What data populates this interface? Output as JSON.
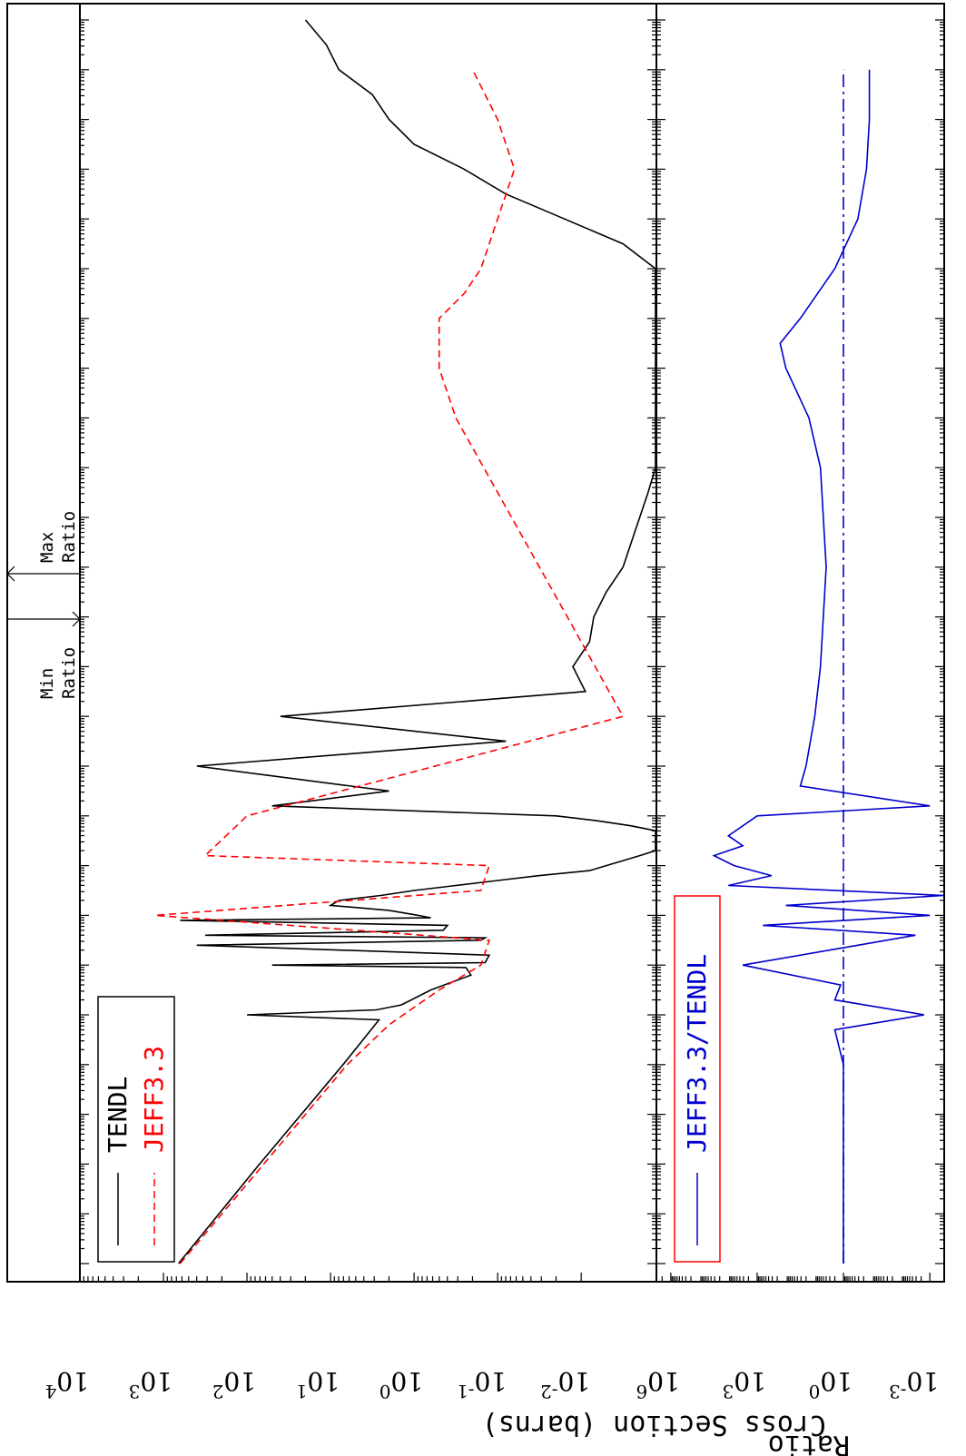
{
  "chart_data": {
    "type": "line",
    "orientation": "rotated-90",
    "x_scale": "log",
    "top_panel": {
      "ylabel": "Cross Section (barns)",
      "y_scale": "log",
      "ylim_exponent": [
        -3,
        4
      ],
      "tick_labels": [
        {
          "base": "10",
          "exp": "4",
          "value": 4
        },
        {
          "base": "10",
          "exp": "3",
          "value": 3
        },
        {
          "base": "10",
          "exp": "2",
          "value": 2
        },
        {
          "base": "10",
          "exp": "1",
          "value": 1
        },
        {
          "base": "10",
          "exp": "0",
          "value": 0
        },
        {
          "base": "10",
          "exp": "-1",
          "value": -1
        },
        {
          "base": "10",
          "exp": "-2",
          "value": -2
        }
      ],
      "series": [
        {
          "name": "TENDL",
          "color": "#000000",
          "style": "solid",
          "log_x": [
            -5.0,
            -3.0,
            -1.0,
            -0.1,
            0.0,
            0.1,
            0.2,
            0.5,
            0.8,
            0.95,
            1.0,
            1.05,
            1.2,
            1.4,
            1.5,
            1.55,
            1.6,
            1.7,
            1.8,
            1.9,
            1.95,
            2.0,
            2.1,
            2.2,
            2.3,
            2.4,
            2.5,
            2.6,
            2.7,
            2.8,
            2.9,
            3.0,
            3.1,
            3.2,
            3.3,
            3.4,
            3.5,
            3.6,
            3.7,
            3.8,
            3.9,
            4.0,
            4.2,
            4.5,
            5.0,
            5.5,
            6.0,
            6.5,
            7.0,
            7.5,
            8.0,
            8.5,
            9.0,
            9.5,
            10.0,
            10.5,
            11.0,
            11.5,
            12.0,
            12.5,
            13.0,
            13.5,
            14.0,
            14.5,
            15.0,
            15.5,
            16.0,
            16.5,
            17.0,
            17.5,
            18.0,
            18.5,
            19.0,
            19.5,
            20.0
          ],
          "log_y": [
            2.82,
            1.85,
            0.85,
            0.42,
            2.0,
            0.45,
            0.15,
            -0.2,
            -0.68,
            -0.62,
            1.7,
            -0.85,
            -0.9,
            2.6,
            -0.8,
            -0.85,
            2.5,
            -0.35,
            -0.4,
            2.8,
            -0.2,
            -0.05,
            0.3,
            1.0,
            0.9,
            0.4,
            0.0,
            -0.5,
            -1.0,
            -1.5,
            -2.1,
            -2.3,
            -2.5,
            -2.7,
            -2.95,
            -3.05,
            -3.1,
            -3.05,
            -2.9,
            -2.6,
            -2.2,
            -1.7,
            1.7,
            0.3,
            2.6,
            -1.1,
            1.6,
            -2.05,
            -1.9,
            -2.1,
            -2.15,
            -2.3,
            -2.5,
            -2.6,
            -2.7,
            -2.8,
            -2.9,
            -3.0,
            -3.05,
            -3.1,
            -3.15,
            -3.2,
            -3.2,
            -3.15,
            -3.0,
            -2.5,
            -1.8,
            -1.1,
            -0.6,
            0.0,
            0.3,
            0.5,
            0.9,
            1.05,
            1.3
          ]
        },
        {
          "name": "JEFF3.3",
          "color": "#ff0000",
          "style": "dashed",
          "log_x": [
            -5.0,
            -3.0,
            -1.0,
            -0.2,
            0.5,
            1.0,
            1.5,
            2.0,
            2.5,
            3.0,
            3.2,
            4.0,
            6.0,
            9.0,
            12.0,
            13.0,
            14.0,
            14.5,
            15.0,
            16.0,
            17.0,
            18.0,
            19.0
          ],
          "log_y": [
            2.8,
            1.8,
            0.8,
            0.3,
            -0.3,
            -0.8,
            -0.9,
            3.1,
            -0.8,
            -0.9,
            2.5,
            2.0,
            -2.5,
            -1.5,
            -0.5,
            -0.3,
            -0.3,
            -0.6,
            -0.8,
            -1.0,
            -1.2,
            -1.0,
            -0.7
          ]
        }
      ]
    },
    "bottom_panel": {
      "ylabel": "Ratio",
      "y_scale": "log",
      "ylim_exponent": [
        -3,
        6
      ],
      "tick_labels": [
        {
          "base": "10",
          "exp": "6",
          "value": 6
        },
        {
          "base": "10",
          "exp": "3",
          "value": 3
        },
        {
          "base": "10",
          "exp": "0",
          "value": 0
        },
        {
          "base": "10",
          "exp": "-3",
          "value": -3
        }
      ],
      "series": [
        {
          "name": "JEFF3.3/TENDL",
          "color": "#0000cc",
          "style": "solid",
          "log_x": [
            -5.0,
            -1.0,
            -0.3,
            0.0,
            0.3,
            0.6,
            1.0,
            1.4,
            1.6,
            1.8,
            2.0,
            2.2,
            2.4,
            2.6,
            2.8,
            3.0,
            3.2,
            3.4,
            3.6,
            4.0,
            4.2,
            4.6,
            5.0,
            6.0,
            7.0,
            9.0,
            11.0,
            12.0,
            13.0,
            13.5,
            14.0,
            15.0,
            16.0,
            17.0,
            18.0,
            19.0
          ],
          "log_y": [
            0.0,
            0.0,
            0.3,
            -2.8,
            0.3,
            0.1,
            3.5,
            -0.5,
            -2.5,
            2.8,
            -3.0,
            2.0,
            -3.5,
            4.0,
            2.5,
            3.8,
            4.5,
            3.5,
            4.0,
            3.0,
            -3.0,
            1.5,
            1.3,
            1.0,
            0.8,
            0.6,
            0.8,
            1.2,
            2.0,
            2.2,
            1.5,
            0.3,
            -0.5,
            -0.8,
            -0.9,
            -0.9
          ]
        },
        {
          "name": "",
          "color": "#0000cc",
          "style": "dash-dot",
          "log_x": [
            -5.0,
            19.0
          ],
          "log_y": [
            0.0,
            0.0
          ]
        }
      ]
    },
    "annotations": {
      "min_ratio": "Min\nRatio",
      "max_ratio": "Max\nRatio"
    },
    "legend_top": [
      {
        "label": "TENDL",
        "color": "#000000",
        "style": "solid"
      },
      {
        "label": "JEFF3.3",
        "color": "#ff0000",
        "style": "dashed"
      }
    ],
    "legend_bottom": [
      {
        "label": "JEFF3.3/TENDL",
        "color": "#0000cc",
        "style": "solid",
        "box_color": "#ff0000"
      }
    ]
  }
}
